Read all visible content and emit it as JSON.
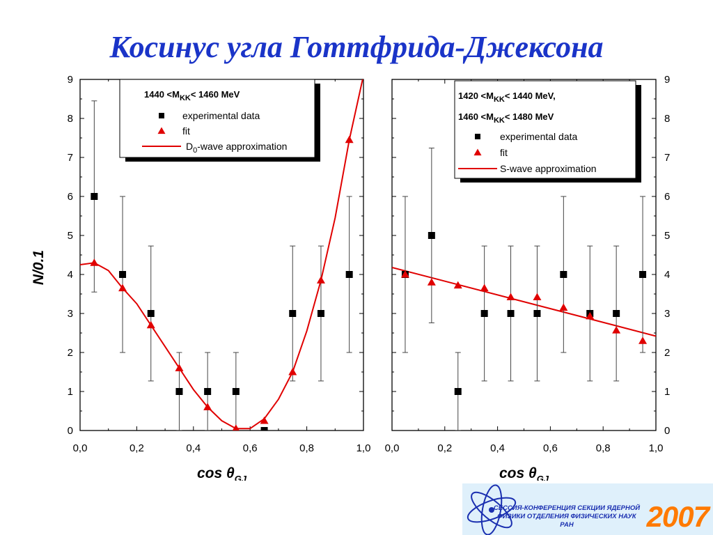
{
  "title": "Косинус угла Готтфрида-Джексона",
  "footer": {
    "line1": "СЕССИЯ-КОНФЕРЕНЦИЯ СЕКЦИИ ЯДЕРНОЙ",
    "line2": "ФИЗИКИ ОТДЕЛЕНИЯ ФИЗИЧЕСКИХ НАУК",
    "line3": "РАН",
    "year": "2007"
  },
  "colors": {
    "title": "#1a34c8",
    "fit": "#e00000",
    "data": "#000000",
    "year": "#ff7a00"
  },
  "chart_data": [
    {
      "type": "scatter",
      "xlabel": "cos θGJ",
      "ylabel": "N/0.1",
      "xlim": [
        0,
        1.0
      ],
      "ylim": [
        0,
        9
      ],
      "xticks": [
        "0,0",
        "0,2",
        "0,4",
        "0,6",
        "0,8",
        "1,0"
      ],
      "yticks": [
        "0",
        "1",
        "2",
        "3",
        "4",
        "5",
        "6",
        "7",
        "8",
        "9"
      ],
      "legend": {
        "placement": "top",
        "title": "1440 <MKK< 1460 MeV",
        "title_main": "1440 <M",
        "title_sub": "KK",
        "title_rest": "< 1460 MeV",
        "entries": [
          {
            "marker": "square",
            "label": "experimental data"
          },
          {
            "marker": "triangle",
            "label": "fit"
          },
          {
            "marker": "line",
            "label": "D0-wave approximation",
            "label_main": "D",
            "label_sub": "0",
            "label_rest": "-wave approximation"
          }
        ]
      },
      "series": [
        {
          "name": "experimental data",
          "marker": "square",
          "x": [
            0.05,
            0.15,
            0.25,
            0.35,
            0.45,
            0.55,
            0.65,
            0.75,
            0.85,
            0.95
          ],
          "y": [
            6,
            4,
            3,
            1,
            1,
            1,
            0,
            3,
            3,
            4
          ],
          "err_low": [
            3.55,
            2.0,
            1.27,
            0,
            0,
            0,
            0,
            1.27,
            1.27,
            2.0
          ],
          "err_high": [
            8.45,
            6.0,
            4.73,
            2.0,
            2.0,
            2.0,
            0,
            4.73,
            4.73,
            6.0
          ]
        },
        {
          "name": "fit",
          "marker": "triangle",
          "x": [
            0.05,
            0.15,
            0.25,
            0.35,
            0.45,
            0.55,
            0.65,
            0.75,
            0.85,
            0.95
          ],
          "y": [
            4.3,
            3.65,
            2.7,
            1.6,
            0.6,
            0.05,
            0.25,
            1.5,
            3.85,
            7.45
          ]
        },
        {
          "name": "D0-wave approximation",
          "marker": "line",
          "x": [
            0.0,
            0.05,
            0.1,
            0.15,
            0.2,
            0.25,
            0.3,
            0.35,
            0.4,
            0.45,
            0.5,
            0.55,
            0.6,
            0.65,
            0.7,
            0.75,
            0.8,
            0.85,
            0.9,
            0.95,
            1.0
          ],
          "y": [
            4.25,
            4.3,
            4.1,
            3.65,
            3.25,
            2.7,
            2.15,
            1.6,
            1.05,
            0.6,
            0.25,
            0.05,
            0.05,
            0.3,
            0.8,
            1.5,
            2.55,
            3.85,
            5.45,
            7.45,
            9.1
          ]
        }
      ]
    },
    {
      "type": "scatter",
      "xlabel": "cos θGJ",
      "ylabel": "",
      "xlim": [
        0,
        1.0
      ],
      "ylim": [
        0,
        9
      ],
      "xticks": [
        "0,0",
        "0,2",
        "0,4",
        "0,6",
        "0,8",
        "1,0"
      ],
      "yticks": [
        "0",
        "1",
        "2",
        "3",
        "4",
        "5",
        "6",
        "7",
        "8",
        "9"
      ],
      "legend": {
        "placement": "top-right",
        "title_line1": "1420 <MKK< 1440 MeV,",
        "title_line1_main": "1420 <M",
        "title_line1_sub": "KK",
        "title_line1_rest": "< 1440 MeV,",
        "title_line2": "1460 <MKK< 1480 MeV",
        "title_line2_main": "1460 <M",
        "title_line2_sub": "KK",
        "title_line2_rest": "< 1480 MeV",
        "entries": [
          {
            "marker": "square",
            "label": "experimental data"
          },
          {
            "marker": "triangle",
            "label": "fit"
          },
          {
            "marker": "line",
            "label": "S-wave approximation"
          }
        ]
      },
      "series": [
        {
          "name": "experimental data",
          "marker": "square",
          "x": [
            0.05,
            0.15,
            0.25,
            0.35,
            0.45,
            0.55,
            0.65,
            0.75,
            0.85,
            0.95
          ],
          "y": [
            4,
            5,
            1,
            3,
            3,
            3,
            4,
            3,
            3,
            4
          ],
          "err_low": [
            2.0,
            2.76,
            0,
            1.27,
            1.27,
            1.27,
            2.0,
            1.27,
            1.27,
            2.0
          ],
          "err_high": [
            6.0,
            7.24,
            2.0,
            4.73,
            4.73,
            4.73,
            6.0,
            4.73,
            4.73,
            6.0
          ]
        },
        {
          "name": "fit",
          "marker": "triangle",
          "x": [
            0.05,
            0.15,
            0.25,
            0.35,
            0.45,
            0.55,
            0.65,
            0.75,
            0.85,
            0.95
          ],
          "y": [
            4.0,
            3.8,
            3.72,
            3.65,
            3.42,
            3.42,
            3.15,
            2.93,
            2.57,
            2.3
          ]
        },
        {
          "name": "S-wave approximation",
          "marker": "line",
          "x": [
            0.0,
            1.0
          ],
          "y": [
            4.18,
            2.42
          ]
        }
      ]
    }
  ]
}
